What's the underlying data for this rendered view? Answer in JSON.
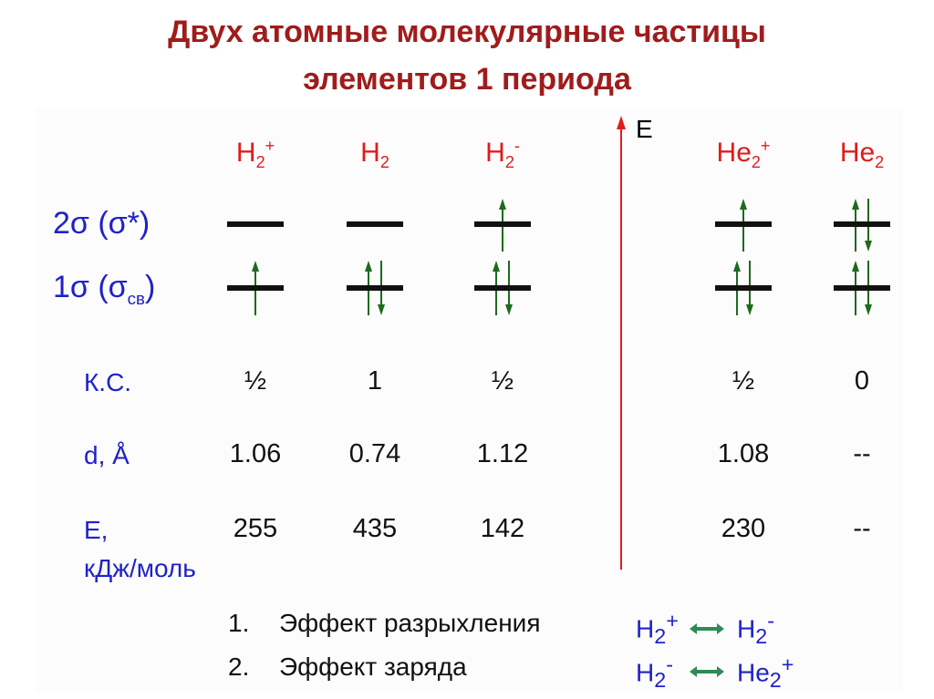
{
  "title": {
    "line1": "Двух атомные молекулярные частицы",
    "line2": "элементов 1 периода"
  },
  "energy_axis_label": "E",
  "orbitals": [
    {
      "main": "2σ (σ*)",
      "sub": ""
    },
    {
      "main": "1σ (σ",
      "sub": "св",
      "close": ")"
    }
  ],
  "species": [
    {
      "base": "H",
      "sub": "2",
      "sup": "+",
      "occ_2s": 0,
      "occ_1s": 1,
      "ks": "½",
      "d": "1.06",
      "e": "255"
    },
    {
      "base": "H",
      "sub": "2",
      "sup": "",
      "occ_2s": 0,
      "occ_1s": 2,
      "ks": "1",
      "d": "0.74",
      "e": "435"
    },
    {
      "base": "H",
      "sub": "2",
      "sup": "-",
      "occ_2s": 1,
      "occ_1s": 2,
      "ks": "½",
      "d": "1.12",
      "e": "142"
    },
    {
      "base": "He",
      "sub": "2",
      "sup": "+",
      "occ_2s": 1,
      "occ_1s": 2,
      "ks": "½",
      "d": "1.08",
      "e": "230"
    },
    {
      "base": "He",
      "sub": "2",
      "sup": "",
      "occ_2s": 2,
      "occ_1s": 2,
      "ks": "0",
      "d": "--",
      "e": "--"
    }
  ],
  "rows": {
    "ks": "К.С.",
    "d": "d, Å",
    "e_line1": "E,",
    "e_line2": "кДж/моль"
  },
  "effects": [
    {
      "num": "1.",
      "text": "Эффект разрыхления",
      "a": {
        "base": "H",
        "sub": "2",
        "sup": "+"
      },
      "b": {
        "base": "H",
        "sub": "2",
        "sup": "-"
      }
    },
    {
      "num": "2.",
      "text": "Эффект заряда",
      "a": {
        "base": "H",
        "sub": "2",
        "sup": "-"
      },
      "b": {
        "base": "He",
        "sub": "2",
        "sup": "+"
      }
    }
  ],
  "colors": {
    "title": "#a01c1c",
    "species": "#e21b1b",
    "labels": "#1f22c8",
    "electron": "#1d6a1d",
    "axis": "#e21b1b",
    "double_arrow": "#2e8b57"
  }
}
